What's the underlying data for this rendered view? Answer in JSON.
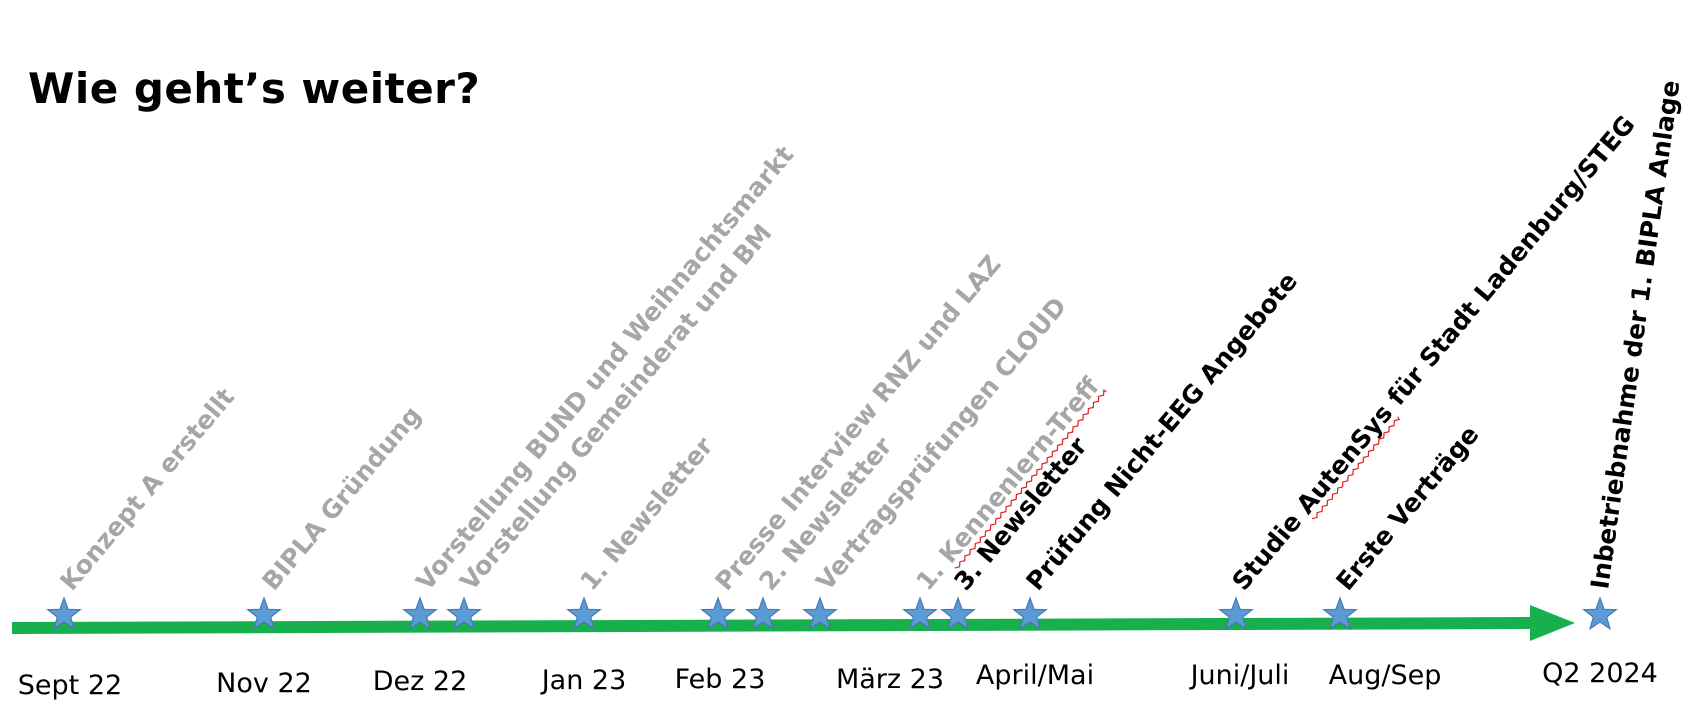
{
  "title": "Wie geht’s weiter?",
  "colors": {
    "arrow": "#17b04c",
    "star": "#5b9bd5",
    "star_outline": "#4a78b0",
    "past_event": "#a6a6a6",
    "future_event": "#000000",
    "period_label": "#000000",
    "spell_underline": "#e02020"
  },
  "periods": [
    "Sept 22",
    "Nov 22",
    "Dez 22",
    "Jan 23",
    "Feb 23",
    "März 23",
    "April/Mai",
    "Juni/Juli",
    "Aug/Sep",
    "Q2 2024"
  ],
  "events": [
    {
      "label": "Konzept A erstellt",
      "status": "past"
    },
    {
      "label": "BIPLA Gründung",
      "status": "past"
    },
    {
      "label": "Vorstellung BUND und Weihnachtsmarkt",
      "status": "past"
    },
    {
      "label": "Vorstellung Gemeinderat und BM",
      "status": "past"
    },
    {
      "label": "1. Newsletter",
      "status": "past"
    },
    {
      "label": "Presse Interview RNZ und LAZ",
      "status": "past"
    },
    {
      "label": "2. Newsletter",
      "status": "past"
    },
    {
      "label": "Vertragsprüfungen CLOUD",
      "status": "past"
    },
    {
      "label": "1. Kennenlern-Treff",
      "status": "past",
      "spellcheck_word": "Kennenlern-Treff"
    },
    {
      "label": "3. Newsletter",
      "status": "future"
    },
    {
      "label": "Prüfung Nicht-EEG Angebote",
      "status": "future"
    },
    {
      "label": "Studie AutenSys für Stadt Ladenburg/STEG",
      "status": "future",
      "spellcheck_word": "AutenSys"
    },
    {
      "label": "Erste Verträge",
      "status": "future"
    },
    {
      "label": "Inbetriebnahme der 1. BIPLA Anlage",
      "status": "future"
    }
  ]
}
